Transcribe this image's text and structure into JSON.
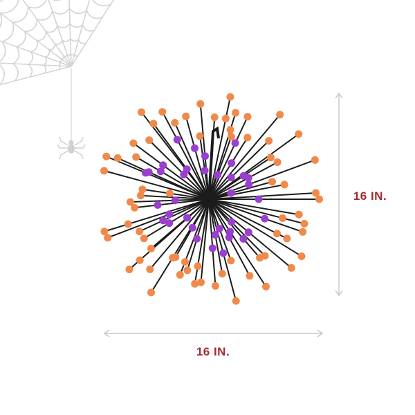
{
  "dimensions": {
    "height": "16 IN.",
    "width": "16 IN."
  }
}
